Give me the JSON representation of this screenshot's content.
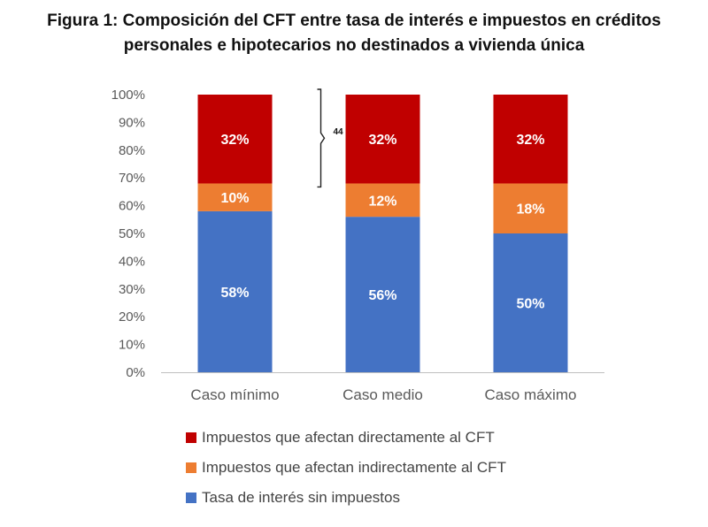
{
  "title_line1": "Figura 1: Composición del CFT entre tasa de interés e impuestos en créditos",
  "title_line2": "personales e hipotecarios no destinados a vivienda única",
  "chart_data": {
    "type": "bar",
    "stacked": true,
    "categories": [
      "Caso mínimo",
      "Caso medio",
      "Caso máximo"
    ],
    "series": [
      {
        "name": "Tasa de interés sin impuestos",
        "values": [
          58,
          56,
          50
        ],
        "labels": [
          "58%",
          "56%",
          "50%"
        ],
        "color": "#4472C4"
      },
      {
        "name": "Impuestos que afectan indirectamente al CFT",
        "values": [
          10,
          12,
          18
        ],
        "labels": [
          "10%",
          "12%",
          "18%"
        ],
        "color": "#ED7D31"
      },
      {
        "name": "Impuestos que afectan directamente al CFT",
        "values": [
          32,
          32,
          32
        ],
        "labels": [
          "32%",
          "32%",
          "32%"
        ],
        "color": "#C00000"
      }
    ],
    "legend_order": [
      2,
      1,
      0
    ],
    "ylim": [
      0,
      100
    ],
    "y_ticks": [
      "0%",
      "10%",
      "20%",
      "30%",
      "40%",
      "50%",
      "60%",
      "70%",
      "80%",
      "90%",
      "100%"
    ],
    "legend_position": "bottom",
    "grid": false,
    "annotation": {
      "text": "44",
      "category": "Caso medio",
      "from": 68,
      "to": 100
    }
  }
}
